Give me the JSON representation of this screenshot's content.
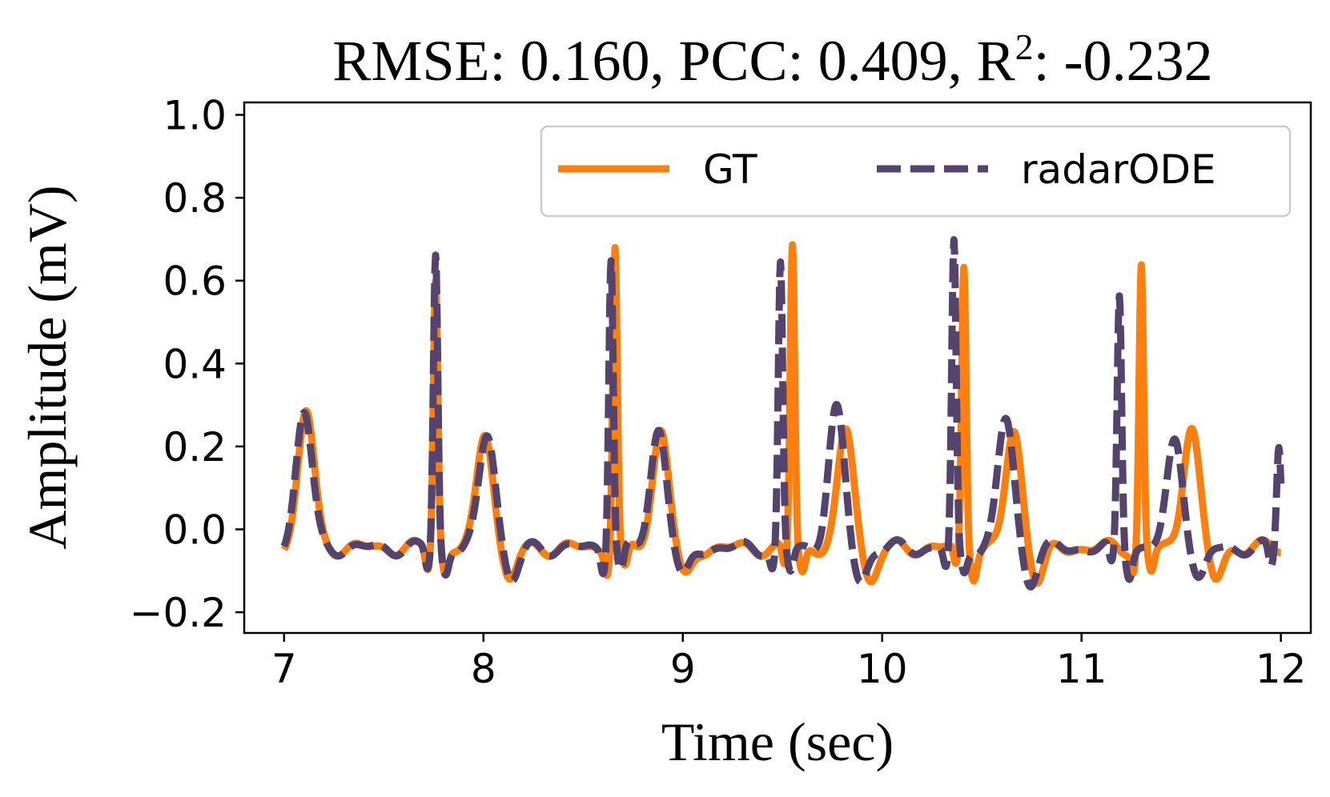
{
  "chart_data": {
    "type": "line",
    "title": {
      "main": "RMSE: 0.160, PCC: 0.409, R",
      "sup": "2",
      "tail": ": -0.232"
    },
    "xlabel": "Time (sec)",
    "ylabel": "Amplitude (mV)",
    "xlim": [
      6.8,
      12.15
    ],
    "ylim": [
      -0.25,
      1.03
    ],
    "xticks": [
      7,
      8,
      9,
      10,
      11,
      12
    ],
    "yticks": [
      -0.2,
      0.0,
      0.2,
      0.4,
      0.6,
      0.8,
      1.0
    ],
    "xtick_labels": [
      "7",
      "8",
      "9",
      "10",
      "11",
      "12"
    ],
    "ytick_labels": [
      "−0.2",
      "0.0",
      "0.2",
      "0.4",
      "0.6",
      "0.8",
      "1.0"
    ],
    "grid": false,
    "legend": {
      "placement": "top-right",
      "ncol": 2
    },
    "series": [
      {
        "name": "GT",
        "color": "#ff7f0e",
        "style": "solid",
        "beats": [
          {
            "p": 7.11,
            "r": 7.76,
            "t": 8.01,
            "ra": 0.65,
            "ta": 0.28
          },
          {
            "r": 8.66,
            "t": 8.89,
            "ra": 0.73,
            "ta": 0.29
          },
          {
            "r": 9.55,
            "t": 9.82,
            "ra": 0.73,
            "ta": 0.28
          },
          {
            "r": 10.41,
            "t": 10.66,
            "ra": 0.68,
            "ta": 0.28
          },
          {
            "r": 11.3,
            "t": 11.55,
            "ra": 0.68,
            "ta": 0.3
          }
        ]
      },
      {
        "name": "radarODE",
        "color": "#54436c",
        "style": "dashed",
        "beats": [
          {
            "p": 7.1,
            "r": 7.76,
            "t": 8.02,
            "ra": 0.71,
            "ta": 0.28
          },
          {
            "r": 8.64,
            "t": 8.88,
            "ra": 0.71,
            "ta": 0.29
          },
          {
            "r": 9.49,
            "t": 9.77,
            "ra": 0.68,
            "ta": 0.33
          },
          {
            "r": 10.36,
            "t": 10.62,
            "ra": 0.73,
            "ta": 0.31
          },
          {
            "r": 11.19,
            "t": 11.47,
            "ra": 0.61,
            "ta": 0.26
          },
          {
            "r": 11.99,
            "ra": 0.25
          }
        ]
      }
    ]
  }
}
